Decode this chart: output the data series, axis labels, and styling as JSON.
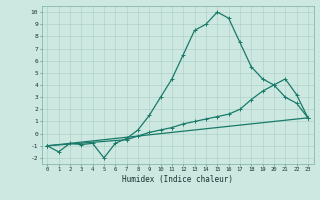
{
  "xlabel": "Humidex (Indice chaleur)",
  "bg_color": "#cce8e0",
  "grid_color": "#aaccC4",
  "line_color": "#1a7a6a",
  "xlim": [
    -0.5,
    23.5
  ],
  "ylim": [
    -2.5,
    10.5
  ],
  "xticks": [
    0,
    1,
    2,
    3,
    4,
    5,
    6,
    7,
    8,
    9,
    10,
    11,
    12,
    13,
    14,
    15,
    16,
    17,
    18,
    19,
    20,
    21,
    22,
    23
  ],
  "yticks": [
    -2,
    -1,
    0,
    1,
    2,
    3,
    4,
    5,
    6,
    7,
    8,
    9,
    10
  ],
  "line1_x": [
    0,
    1,
    2,
    3,
    4,
    5,
    6,
    7,
    8,
    9,
    10,
    11,
    12,
    13,
    14,
    15,
    16,
    17,
    18,
    19,
    20,
    21,
    22,
    23
  ],
  "line1_y": [
    -1,
    -1.5,
    -0.8,
    -0.9,
    -0.8,
    -2.0,
    -0.8,
    -0.4,
    0.3,
    1.5,
    3.0,
    4.5,
    6.5,
    8.5,
    9.0,
    10.0,
    9.5,
    7.5,
    5.5,
    4.5,
    4.0,
    3.0,
    2.5,
    1.3
  ],
  "line2_x": [
    0,
    7,
    8,
    9,
    10,
    11,
    12,
    13,
    14,
    15,
    16,
    17,
    18,
    19,
    20,
    21,
    22,
    23
  ],
  "line2_y": [
    -1,
    -0.5,
    -0.2,
    0.1,
    0.3,
    0.5,
    0.8,
    1.0,
    1.2,
    1.4,
    1.6,
    2.0,
    2.8,
    3.5,
    4.0,
    4.5,
    3.2,
    1.3
  ],
  "line3_x": [
    0,
    23
  ],
  "line3_y": [
    -1,
    1.3
  ],
  "linewidth": 0.9,
  "marker_size": 3.0
}
